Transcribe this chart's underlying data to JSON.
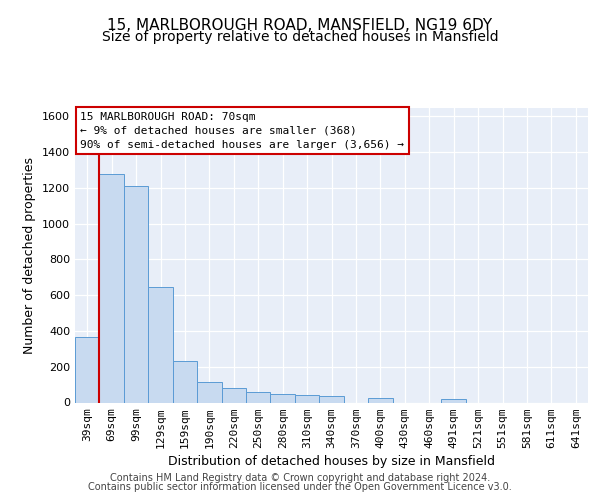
{
  "title1": "15, MARLBOROUGH ROAD, MANSFIELD, NG19 6DY",
  "title2": "Size of property relative to detached houses in Mansfield",
  "xlabel": "Distribution of detached houses by size in Mansfield",
  "ylabel": "Number of detached properties",
  "footer1": "Contains HM Land Registry data © Crown copyright and database right 2024.",
  "footer2": "Contains public sector information licensed under the Open Government Licence v3.0.",
  "annotation_line1": "15 MARLBOROUGH ROAD: 70sqm",
  "annotation_line2": "← 9% of detached houses are smaller (368)",
  "annotation_line3": "90% of semi-detached houses are larger (3,656) →",
  "bar_color": "#c8daf0",
  "bar_edge_color": "#5b9bd5",
  "categories": [
    "39sqm",
    "69sqm",
    "99sqm",
    "129sqm",
    "159sqm",
    "190sqm",
    "220sqm",
    "250sqm",
    "280sqm",
    "310sqm",
    "340sqm",
    "370sqm",
    "400sqm",
    "430sqm",
    "460sqm",
    "491sqm",
    "521sqm",
    "551sqm",
    "581sqm",
    "611sqm",
    "641sqm"
  ],
  "values": [
    368,
    1280,
    1210,
    648,
    232,
    112,
    82,
    60,
    46,
    40,
    35,
    0,
    25,
    0,
    0,
    18,
    0,
    0,
    0,
    0,
    0
  ],
  "ylim": [
    0,
    1650
  ],
  "yticks": [
    0,
    200,
    400,
    600,
    800,
    1000,
    1200,
    1400,
    1600
  ],
  "bg_color": "#e8eef8",
  "grid_color": "#ffffff",
  "red_line_color": "#cc0000",
  "ann_box_edge": "#cc0000",
  "title1_fontsize": 11,
  "title2_fontsize": 10,
  "ylabel_fontsize": 9,
  "xlabel_fontsize": 9,
  "tick_fontsize": 8,
  "footer_fontsize": 7,
  "ann_fontsize": 8
}
